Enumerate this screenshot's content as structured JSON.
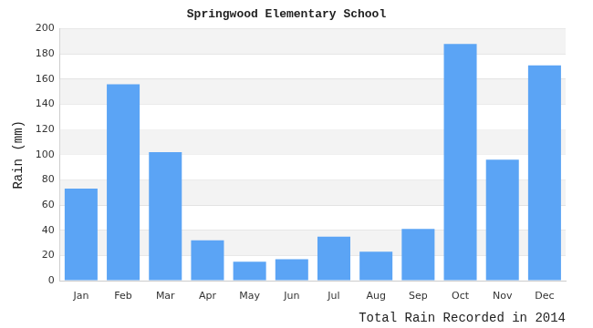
{
  "chart_data": {
    "type": "bar",
    "title": "Springwood Elementary School",
    "y_label": "Rain (mm)",
    "x_label": "Total Rain Recorded in 2014",
    "categories": [
      "Jan",
      "Feb",
      "Mar",
      "Apr",
      "May",
      "Jun",
      "Jul",
      "Aug",
      "Sep",
      "Oct",
      "Nov",
      "Dec"
    ],
    "values": [
      73,
      156,
      102,
      32,
      15,
      17,
      35,
      23,
      41,
      188,
      96,
      171
    ],
    "color": "#5ba4f5",
    "ylim": [
      0,
      200
    ],
    "yticks": [
      0,
      20,
      40,
      60,
      80,
      100,
      120,
      140,
      160,
      180,
      200
    ],
    "grid": true
  }
}
